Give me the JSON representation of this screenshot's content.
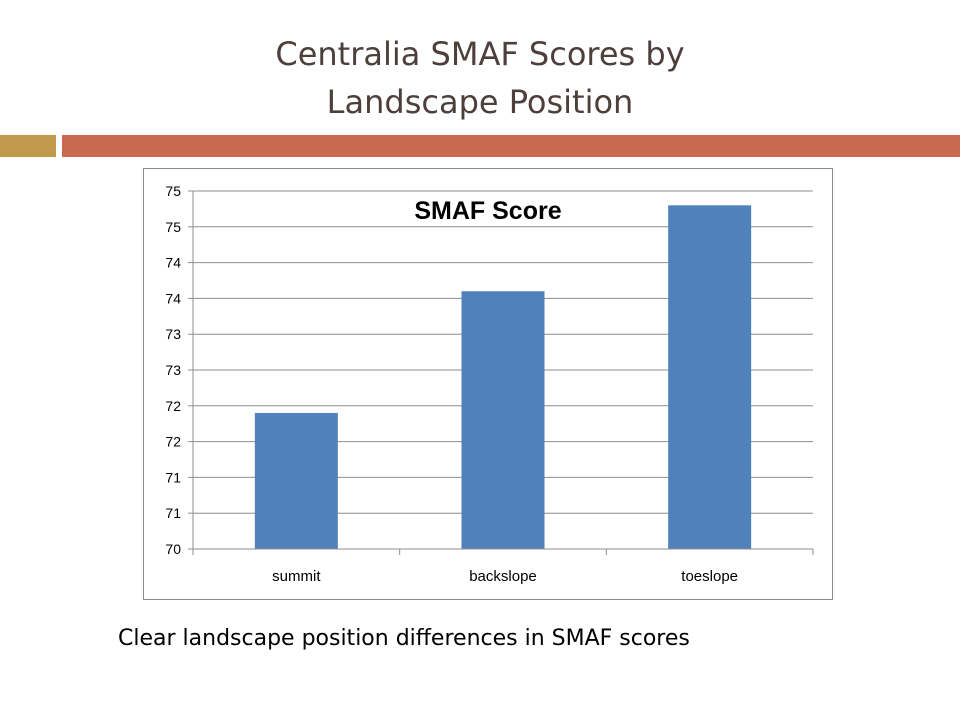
{
  "slide": {
    "title_line1": "Centralia SMAF Scores by",
    "title_line2": "Landscape Position",
    "caption": "Clear landscape position differences in SMAF scores",
    "colors": {
      "title": "#4d3f3b",
      "accent_left": "#c09a4a",
      "accent_right": "#c96a50"
    }
  },
  "chart_data": {
    "type": "bar",
    "title": "SMAF Score",
    "xlabel": "",
    "ylabel": "",
    "categories": [
      "summit",
      "backslope",
      "toeslope"
    ],
    "values": [
      71.9,
      73.6,
      74.8
    ],
    "ylim": [
      70,
      75
    ],
    "yticks": [
      70,
      70.5,
      71,
      71.5,
      72,
      72.5,
      73,
      73.5,
      74,
      74.5,
      75
    ],
    "ytick_labels": [
      "70",
      "71",
      "71",
      "72",
      "72",
      "73",
      "73",
      "74",
      "74",
      "75",
      "75"
    ],
    "grid": true,
    "legend": "none",
    "bar_color": "#4f81bd"
  }
}
